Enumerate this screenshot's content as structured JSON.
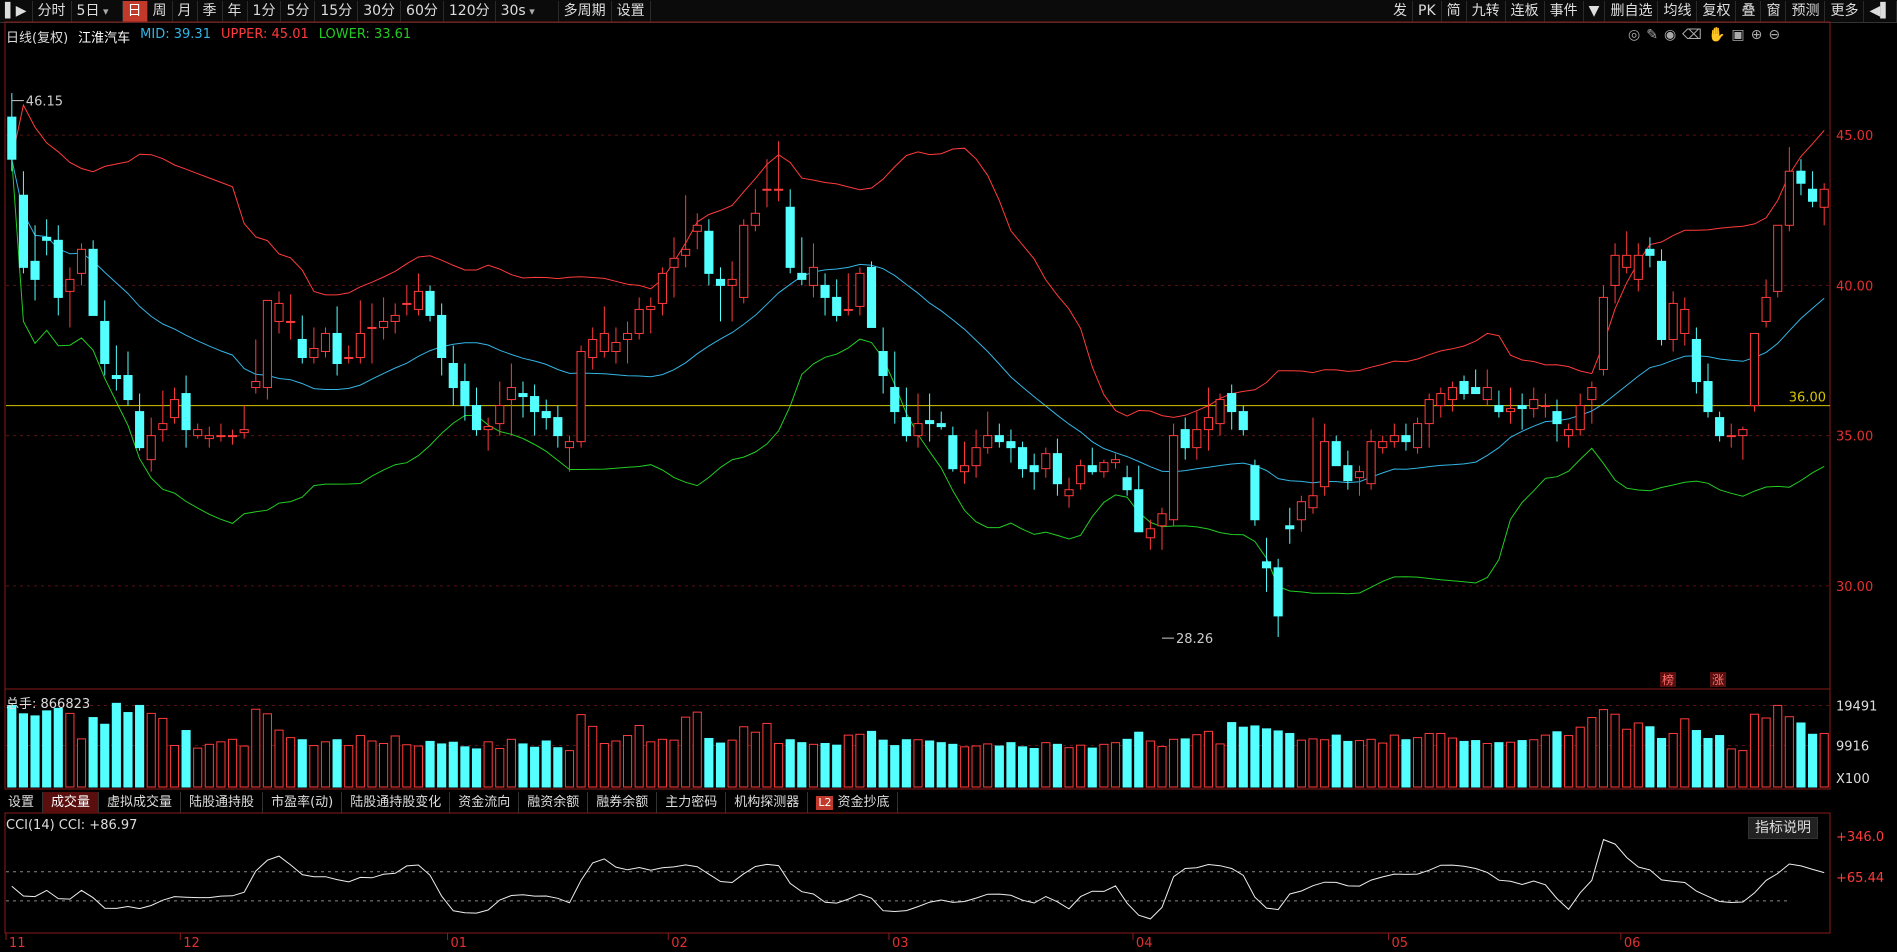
{
  "toolbar": {
    "left": [
      {
        "label": "分时",
        "type": "tab"
      },
      {
        "label": "5日",
        "type": "dropdown"
      },
      {
        "label": "日",
        "type": "tab",
        "active": true
      },
      {
        "label": "周",
        "type": "tab"
      },
      {
        "label": "月",
        "type": "tab"
      },
      {
        "label": "季",
        "type": "tab"
      },
      {
        "label": "年",
        "type": "tab"
      },
      {
        "label": "1分",
        "type": "tab"
      },
      {
        "label": "5分",
        "type": "tab"
      },
      {
        "label": "15分",
        "type": "tab"
      },
      {
        "label": "30分",
        "type": "tab"
      },
      {
        "label": "60分",
        "type": "tab"
      },
      {
        "label": "120分",
        "type": "tab"
      },
      {
        "label": "30s",
        "type": "dropdown"
      },
      {
        "label": "多周期",
        "type": "tab"
      },
      {
        "label": "设置",
        "type": "tab"
      }
    ],
    "right": [
      "发",
      "PK",
      "简",
      "九转",
      "连板",
      "事件",
      "▼",
      "删自选",
      "均线",
      "复权",
      "叠",
      "窗",
      "预测",
      "更多"
    ]
  },
  "header": {
    "period_label": "日线(复权)",
    "stock_name": "江淮汽车",
    "mid_label": "MID: 39.31",
    "upper_label": "UPPER: 45.01",
    "lower_label": "LOWER: 33.61",
    "mid_color": "#33b5e5",
    "upper_color": "#ff3b3b",
    "lower_color": "#22cc22"
  },
  "volume_header": {
    "label": "总手: 866823"
  },
  "cci_header": {
    "label": "CCI(14)  CCI: +86.97"
  },
  "tabs": [
    {
      "label": "设置"
    },
    {
      "label": "成交量",
      "active": true
    },
    {
      "label": "虚拟成交量"
    },
    {
      "label": "陆股通持股"
    },
    {
      "label": "市盈率(动)"
    },
    {
      "label": "陆股通持股变化"
    },
    {
      "label": "资金流向"
    },
    {
      "label": "融资余额"
    },
    {
      "label": "融券余额"
    },
    {
      "label": "主力密码"
    },
    {
      "label": "机构探测器"
    },
    {
      "label": "资金抄底",
      "badge": "L2"
    }
  ],
  "help_button": "指标说明",
  "chart_data": {
    "type": "candlestick",
    "price_axis": {
      "ticks": [
        30.0,
        35.0,
        40.0,
        45.0
      ],
      "range": [
        26.6,
        48.6
      ]
    },
    "hline": {
      "value": 36.0,
      "label": "36.00",
      "color": "#d4c400"
    },
    "annotations": [
      {
        "text": "46.15",
        "value": 46.15,
        "bar": 0
      },
      {
        "text": "28.26",
        "value": 28.26,
        "bar": 99
      }
    ],
    "markers": [
      "榜",
      "涨"
    ],
    "x_labels": [
      {
        "text": "11",
        "bar": 0
      },
      {
        "text": "12",
        "bar": 15
      },
      {
        "text": "01",
        "bar": 38
      },
      {
        "text": "02",
        "bar": 57
      },
      {
        "text": "03",
        "bar": 76
      },
      {
        "text": "04",
        "bar": 97
      },
      {
        "text": "05",
        "bar": 119
      },
      {
        "text": "06",
        "bar": 139
      }
    ],
    "volume_axis": {
      "ticks": [
        "19491",
        "9916"
      ],
      "unit": "X100",
      "max": 20800
    },
    "cci_axis": {
      "ticks": [
        "+346.0",
        "+65.44"
      ],
      "range": [
        -300,
        400
      ]
    },
    "bars": [
      [
        45.6,
        46.4,
        43.8,
        44.2
      ],
      [
        43.0,
        43.8,
        40.4,
        40.6
      ],
      [
        40.8,
        42.0,
        39.5,
        40.2
      ],
      [
        41.6,
        42.2,
        41.0,
        41.5
      ],
      [
        41.5,
        42.0,
        39.0,
        39.6
      ],
      [
        39.8,
        40.6,
        38.6,
        40.2
      ],
      [
        40.4,
        41.4,
        40.0,
        41.2
      ],
      [
        41.2,
        41.5,
        39.0,
        39.0
      ],
      [
        38.8,
        39.5,
        37.0,
        37.4
      ],
      [
        37.0,
        38.0,
        36.5,
        36.9
      ],
      [
        37.0,
        37.8,
        36.0,
        36.2
      ],
      [
        35.8,
        36.4,
        34.5,
        34.6
      ],
      [
        34.2,
        35.6,
        33.8,
        35.0
      ],
      [
        35.2,
        36.5,
        34.8,
        35.4
      ],
      [
        35.6,
        36.6,
        35.4,
        36.2
      ],
      [
        36.4,
        37.0,
        34.6,
        35.2
      ],
      [
        35.0,
        35.4,
        34.9,
        35.2
      ],
      [
        34.9,
        35.3,
        34.6,
        35.0
      ],
      [
        35.0,
        35.4,
        34.8,
        35.0
      ],
      [
        35.0,
        35.2,
        34.7,
        35.0
      ],
      [
        35.1,
        36.0,
        34.9,
        35.2
      ],
      [
        36.6,
        38.2,
        36.4,
        36.8
      ],
      [
        36.6,
        38.6,
        36.2,
        39.5
      ],
      [
        38.8,
        39.8,
        38.4,
        39.4
      ],
      [
        38.8,
        39.7,
        38.2,
        38.8
      ],
      [
        38.2,
        39.0,
        37.4,
        37.6
      ],
      [
        37.6,
        38.6,
        37.4,
        37.9
      ],
      [
        37.8,
        38.6,
        37.6,
        38.4
      ],
      [
        38.4,
        39.3,
        37.0,
        37.4
      ],
      [
        37.6,
        38.0,
        37.4,
        37.6
      ],
      [
        37.6,
        39.5,
        37.4,
        38.4
      ],
      [
        38.6,
        39.4,
        37.4,
        38.6
      ],
      [
        38.6,
        39.6,
        38.2,
        38.8
      ],
      [
        38.8,
        39.4,
        38.4,
        39.0
      ],
      [
        39.4,
        40.0,
        39.0,
        39.4
      ],
      [
        39.2,
        40.4,
        39.0,
        39.8
      ],
      [
        39.8,
        40.0,
        38.8,
        39.0
      ],
      [
        39.0,
        39.4,
        37.0,
        37.6
      ],
      [
        37.4,
        38.0,
        36.0,
        36.6
      ],
      [
        36.8,
        37.4,
        35.5,
        36.0
      ],
      [
        36.0,
        36.6,
        35.0,
        35.2
      ],
      [
        35.2,
        35.6,
        34.5,
        35.3
      ],
      [
        35.4,
        36.8,
        35.0,
        36.0
      ],
      [
        36.2,
        37.4,
        35.0,
        36.6
      ],
      [
        36.4,
        36.8,
        35.6,
        36.3
      ],
      [
        36.3,
        36.7,
        35.0,
        35.8
      ],
      [
        35.8,
        36.2,
        35.2,
        35.6
      ],
      [
        35.6,
        36.0,
        34.6,
        35.0
      ],
      [
        34.6,
        35.0,
        33.8,
        34.8
      ],
      [
        34.8,
        38.0,
        34.6,
        37.8
      ],
      [
        37.6,
        38.6,
        37.2,
        38.2
      ],
      [
        37.8,
        39.3,
        37.6,
        38.4
      ],
      [
        37.8,
        38.6,
        37.4,
        38.1
      ],
      [
        38.2,
        38.8,
        37.4,
        38.4
      ],
      [
        38.4,
        39.6,
        38.2,
        39.2
      ],
      [
        39.2,
        39.6,
        38.4,
        39.3
      ],
      [
        39.4,
        40.6,
        39.0,
        40.4
      ],
      [
        40.6,
        41.6,
        39.6,
        40.9
      ],
      [
        41.0,
        43.0,
        40.6,
        41.2
      ],
      [
        41.8,
        42.4,
        41.2,
        42.0
      ],
      [
        41.8,
        42.2,
        40.0,
        40.4
      ],
      [
        40.2,
        40.6,
        38.8,
        40.0
      ],
      [
        40.0,
        40.8,
        38.8,
        40.2
      ],
      [
        39.6,
        42.2,
        39.4,
        42.0
      ],
      [
        42.0,
        43.2,
        41.8,
        42.4
      ],
      [
        43.2,
        44.2,
        42.6,
        43.2
      ],
      [
        43.2,
        44.8,
        42.8,
        43.2
      ],
      [
        42.6,
        43.2,
        40.4,
        40.6
      ],
      [
        40.4,
        41.6,
        40.0,
        40.2
      ],
      [
        40.0,
        41.4,
        39.6,
        40.6
      ],
      [
        40.0,
        40.4,
        39.0,
        39.6
      ],
      [
        39.6,
        40.2,
        38.8,
        39.0
      ],
      [
        39.2,
        40.4,
        39.0,
        39.2
      ],
      [
        39.3,
        40.6,
        39.0,
        40.4
      ],
      [
        40.6,
        40.8,
        38.6,
        38.6
      ],
      [
        37.8,
        38.6,
        36.4,
        37.0
      ],
      [
        36.6,
        37.8,
        35.4,
        35.8
      ],
      [
        35.6,
        36.6,
        34.8,
        35.0
      ],
      [
        35.0,
        36.4,
        34.6,
        35.4
      ],
      [
        35.5,
        36.4,
        34.8,
        35.4
      ],
      [
        35.4,
        35.8,
        35.2,
        35.3
      ],
      [
        35.0,
        35.3,
        33.8,
        33.9
      ],
      [
        33.8,
        34.8,
        33.4,
        34.0
      ],
      [
        34.0,
        35.2,
        33.6,
        34.6
      ],
      [
        34.6,
        35.8,
        34.4,
        35.0
      ],
      [
        35.0,
        35.4,
        34.6,
        34.8
      ],
      [
        34.8,
        35.2,
        34.1,
        34.6
      ],
      [
        34.6,
        34.8,
        33.6,
        33.9
      ],
      [
        34.0,
        34.4,
        33.2,
        33.8
      ],
      [
        33.9,
        34.6,
        33.6,
        34.4
      ],
      [
        34.4,
        34.9,
        33.0,
        33.4
      ],
      [
        33.0,
        33.6,
        32.6,
        33.2
      ],
      [
        33.4,
        34.2,
        33.2,
        34.0
      ],
      [
        34.0,
        34.6,
        33.7,
        33.8
      ],
      [
        33.8,
        34.2,
        33.6,
        34.1
      ],
      [
        34.1,
        34.4,
        33.9,
        34.2
      ],
      [
        33.6,
        34.0,
        33.0,
        33.2
      ],
      [
        33.2,
        34.0,
        31.8,
        31.8
      ],
      [
        31.6,
        32.2,
        31.2,
        31.9
      ],
      [
        32.0,
        32.6,
        31.2,
        32.4
      ],
      [
        32.2,
        35.4,
        32.0,
        35.0
      ],
      [
        35.2,
        35.6,
        34.2,
        34.6
      ],
      [
        34.6,
        35.8,
        34.2,
        35.2
      ],
      [
        35.2,
        36.6,
        34.5,
        35.6
      ],
      [
        35.4,
        36.4,
        35.0,
        36.2
      ],
      [
        36.4,
        36.7,
        35.2,
        35.8
      ],
      [
        35.8,
        36.0,
        35.0,
        35.2
      ],
      [
        34.0,
        34.2,
        32.0,
        32.2
      ],
      [
        30.8,
        31.6,
        29.8,
        30.6
      ],
      [
        30.6,
        30.9,
        28.3,
        29.0
      ],
      [
        32.0,
        32.6,
        31.4,
        31.9
      ],
      [
        32.2,
        33.0,
        31.8,
        32.8
      ],
      [
        32.6,
        35.6,
        32.4,
        33.0
      ],
      [
        33.3,
        35.4,
        33.0,
        34.8
      ],
      [
        34.8,
        35.0,
        34.2,
        34.0
      ],
      [
        34.0,
        34.5,
        33.2,
        33.5
      ],
      [
        33.6,
        34.0,
        33.0,
        33.8
      ],
      [
        33.4,
        35.2,
        33.2,
        34.8
      ],
      [
        34.6,
        35.0,
        34.4,
        34.8
      ],
      [
        34.8,
        35.4,
        34.6,
        35.0
      ],
      [
        35.0,
        35.4,
        34.5,
        34.8
      ],
      [
        34.6,
        35.6,
        34.4,
        35.4
      ],
      [
        35.4,
        36.4,
        34.6,
        36.2
      ],
      [
        36.0,
        36.6,
        35.6,
        36.4
      ],
      [
        36.2,
        36.8,
        35.8,
        36.6
      ],
      [
        36.8,
        37.0,
        36.2,
        36.4
      ],
      [
        36.6,
        37.2,
        36.4,
        36.4
      ],
      [
        36.2,
        37.2,
        36.0,
        36.6
      ],
      [
        36.0,
        36.5,
        35.6,
        35.8
      ],
      [
        35.8,
        36.6,
        35.4,
        35.9
      ],
      [
        36.0,
        36.4,
        35.2,
        35.9
      ],
      [
        35.9,
        36.6,
        35.6,
        36.2
      ],
      [
        36.0,
        36.4,
        35.6,
        36.0
      ],
      [
        35.8,
        36.2,
        34.8,
        35.4
      ],
      [
        35.0,
        35.4,
        34.6,
        35.2
      ],
      [
        35.2,
        36.4,
        35.0,
        36.0
      ],
      [
        36.2,
        36.8,
        35.4,
        36.6
      ],
      [
        37.2,
        40.0,
        37.0,
        39.6
      ],
      [
        40.0,
        41.4,
        39.4,
        41.0
      ],
      [
        40.6,
        41.8,
        40.4,
        41.0
      ],
      [
        40.2,
        41.4,
        39.8,
        41.0
      ],
      [
        41.2,
        41.6,
        40.6,
        41.0
      ],
      [
        40.8,
        41.2,
        38.0,
        38.2
      ],
      [
        38.2,
        39.8,
        37.8,
        39.4
      ],
      [
        38.4,
        39.6,
        38.0,
        39.2
      ],
      [
        38.2,
        38.6,
        36.4,
        36.8
      ],
      [
        36.8,
        37.4,
        35.6,
        35.8
      ],
      [
        35.6,
        35.8,
        34.8,
        35.0
      ],
      [
        35.0,
        35.4,
        34.6,
        35.0
      ],
      [
        35.0,
        35.3,
        34.2,
        35.2
      ],
      [
        36.0,
        36.4,
        35.8,
        38.4
      ],
      [
        38.8,
        40.2,
        38.6,
        39.6
      ],
      [
        39.8,
        41.2,
        39.6,
        42.0
      ],
      [
        42.0,
        44.6,
        41.8,
        43.8
      ],
      [
        43.8,
        44.2,
        43.0,
        43.4
      ],
      [
        43.2,
        43.8,
        42.6,
        42.8
      ],
      [
        42.6,
        43.4,
        42.0,
        43.2
      ]
    ],
    "volume": [
      19491,
      17500,
      17000,
      18200,
      18800,
      17600,
      11500,
      16600,
      15000,
      20000,
      17800,
      19500,
      17600,
      16400,
      9916,
      13500,
      9300,
      10200,
      10800,
      11400,
      9800,
      18600,
      17500,
      13600,
      11800,
      11300,
      9900,
      10800,
      11300,
      9900,
      12300,
      11000,
      10400,
      12200,
      10100,
      9800,
      10900,
      10300,
      10700,
      9600,
      9100,
      10800,
      9200,
      11400,
      10300,
      9500,
      11000,
      9400,
      8700,
      17300,
      14500,
      10400,
      11000,
      12300,
      14700,
      10800,
      11400,
      11200,
      16700,
      17900,
      11600,
      10500,
      11200,
      14400,
      13100,
      15200,
      10400,
      11300,
      10600,
      10200,
      10400,
      10000,
      12400,
      12600,
      13300,
      11200,
      9900,
      11300,
      11300,
      11000,
      10600,
      10200,
      9600,
      9800,
      10300,
      9800,
      10600,
      9600,
      9200,
      10600,
      10200,
      9400,
      10000,
      9300,
      10200,
      10600,
      11400,
      13100,
      11000,
      9700,
      11400,
      11500,
      12500,
      13300,
      10300,
      15400,
      14300,
      14600,
      13900,
      13400,
      12800,
      11200,
      11500,
      11300,
      12400,
      10900,
      11100,
      11400,
      10500,
      12400,
      11300,
      11800,
      12800,
      12800,
      11700,
      10900,
      11100,
      10400,
      10600,
      10700,
      11100,
      11300,
      12400,
      13200,
      12300,
      14300,
      16600,
      18500,
      17400,
      13800,
      15300,
      14400,
      11600,
      12800,
      16300,
      13500,
      11600,
      12300,
      9100,
      8700,
      17400,
      16500,
      19500,
      16800,
      15300,
      12600,
      12800
    ]
  }
}
